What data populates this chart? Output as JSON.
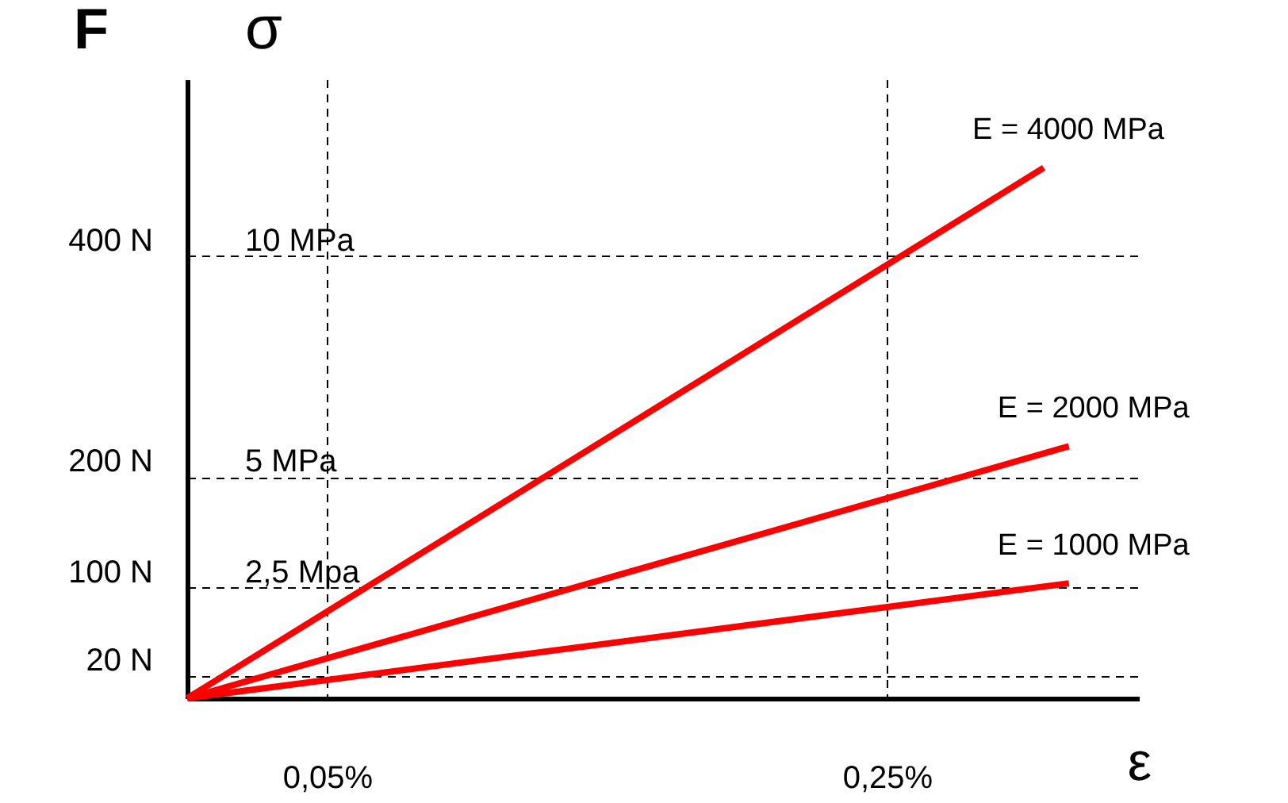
{
  "chart_data": {
    "type": "line",
    "xlabel": "ε",
    "ylabel": "σ",
    "y2label": "F",
    "xlim": [
      0,
      0.34
    ],
    "xticks": [
      {
        "value": 0.05,
        "label": "0,05%"
      },
      {
        "value": 0.25,
        "label": "0,25%"
      }
    ],
    "ylim": [
      0,
      14
    ],
    "yticks": [
      {
        "value": 2.5,
        "label": "2,5 Mpa"
      },
      {
        "value": 5,
        "label": "5 MPa"
      },
      {
        "value": 10,
        "label": "10 MPa"
      }
    ],
    "y2lim": [
      0,
      560
    ],
    "y2ticks": [
      {
        "value": 20,
        "label": "20 N"
      },
      {
        "value": 100,
        "label": "100 N"
      },
      {
        "value": 200,
        "label": "200 N"
      },
      {
        "value": 400,
        "label": "400 N"
      }
    ],
    "series": [
      {
        "name": "E = 4000 MPa",
        "color": "#ff0000",
        "x": [
          0,
          0.306
        ],
        "values": [
          0,
          12
        ]
      },
      {
        "name": "E = 2000 MPa",
        "color": "#ff0000",
        "x": [
          0,
          0.315
        ],
        "values": [
          0,
          5.7
        ]
      },
      {
        "name": "E = 1000 MPa",
        "color": "#ff0000",
        "x": [
          0,
          0.315
        ],
        "values": [
          0,
          2.6
        ]
      }
    ],
    "grid": true,
    "legend": false,
    "marker": "none",
    "line_style": "solid"
  }
}
